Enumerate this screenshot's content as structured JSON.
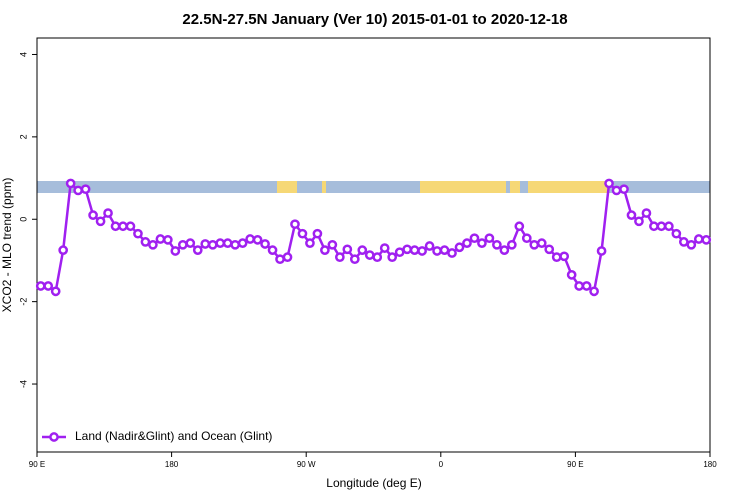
{
  "chart_data": {
    "type": "line",
    "title": "22.5N-27.5N January (Ver 10)   2015-01-01 to 2020-12-18",
    "x_label": "Longitude (deg E)",
    "y_label": "XCO2 - MLO trend (ppm)",
    "x": [
      92.5,
      97.5,
      102.5,
      107.5,
      112.5,
      117.5,
      122.5,
      127.5,
      132.5,
      137.5,
      142.5,
      147.5,
      152.5,
      157.5,
      162.5,
      167.5,
      172.5,
      177.5,
      182.5,
      187.5,
      192.5,
      197.5,
      202.5,
      207.5,
      212.5,
      217.5,
      222.5,
      227.5,
      232.5,
      237.5,
      242.5,
      247.5,
      252.5,
      257.5,
      262.5,
      267.5,
      272.5,
      277.5,
      282.5,
      287.5,
      292.5,
      297.5,
      302.5,
      307.5,
      312.5,
      317.5,
      322.5,
      327.5,
      332.5,
      337.5,
      342.5,
      347.5,
      352.5,
      357.5,
      362.5,
      367.5,
      372.5,
      377.5,
      382.5,
      387.5,
      392.5,
      397.5,
      402.5,
      407.5,
      412.5,
      417.5,
      422.5,
      427.5,
      432.5,
      437.5,
      442.5,
      447.5,
      452.5,
      457.5,
      462.5,
      467.5,
      472.5,
      477.5,
      482.5,
      487.5,
      492.5,
      497.5,
      502.5,
      507.5,
      512.5,
      517.5,
      522.5,
      527.5,
      532.5,
      537.5
    ],
    "series": [
      {
        "name": "Land (Nadir&Glint) and Ocean (Glint)",
        "color": "#a020f0",
        "values": [
          -1.62,
          -1.62,
          -1.75,
          -0.75,
          0.87,
          0.7,
          0.73,
          0.1,
          -0.05,
          0.15,
          -0.17,
          -0.17,
          -0.17,
          -0.35,
          -0.55,
          -0.62,
          -0.48,
          -0.5,
          -0.77,
          -0.62,
          -0.58,
          -0.75,
          -0.6,
          -0.62,
          -0.58,
          -0.58,
          -0.62,
          -0.58,
          -0.48,
          -0.5,
          -0.6,
          -0.75,
          -0.97,
          -0.92,
          -0.12,
          -0.35,
          -0.58,
          -0.35,
          -0.75,
          -0.62,
          -0.92,
          -0.73,
          -0.97,
          -0.75,
          -0.87,
          -0.92,
          -0.7,
          -0.92,
          -0.8,
          -0.73,
          -0.75,
          -0.77,
          -0.65,
          -0.77,
          -0.75,
          -0.82,
          -0.68,
          -0.58,
          -0.46,
          -0.58,
          -0.46,
          -0.62,
          -0.75,
          -0.62,
          -0.17,
          -0.46,
          -0.62,
          -0.58,
          -0.73,
          -0.92,
          -0.9,
          -1.35,
          -1.62,
          -1.62,
          -1.75,
          -0.77,
          0.87,
          0.7,
          0.73,
          0.1,
          -0.05,
          0.15,
          -0.17,
          -0.17,
          -0.17,
          -0.35,
          -0.55,
          -0.62,
          -0.48,
          -0.5
        ]
      }
    ],
    "xlim": [
      90,
      540
    ],
    "xticks": [
      {
        "value": 90,
        "label": "90 E"
      },
      180,
      {
        "value": 270,
        "label": "90 W"
      },
      {
        "value": 360,
        "label": "0"
      },
      {
        "value": 450,
        "label": "90 E"
      },
      {
        "value": 540,
        "label": "180"
      }
    ],
    "ylim": [
      -5.65,
      4.4
    ],
    "yticks": [
      -4,
      -2,
      0,
      2,
      4
    ],
    "legend_position": "bottom-left"
  }
}
